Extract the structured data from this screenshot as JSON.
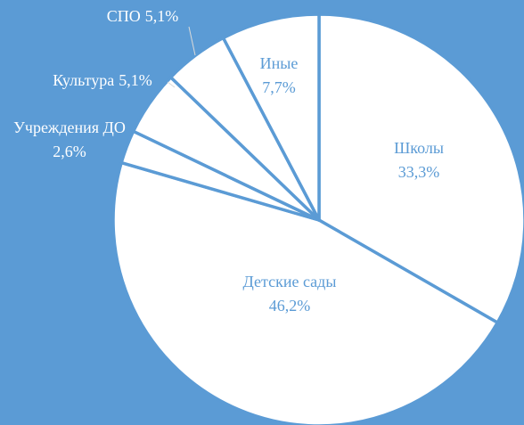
{
  "chart_data": {
    "type": "pie",
    "categories": [
      "Школы",
      "Детские сады",
      "Учреждения ДО",
      "Культура",
      "СПО",
      "Иные"
    ],
    "values": [
      33.3,
      46.2,
      2.6,
      5.1,
      5.1,
      7.7
    ],
    "value_labels": [
      "33,3%",
      "46,2%",
      "2,6%",
      "5,1%",
      "5,1%",
      "7,7%"
    ],
    "color": "#ffffff",
    "background": "#5b9bd5"
  }
}
